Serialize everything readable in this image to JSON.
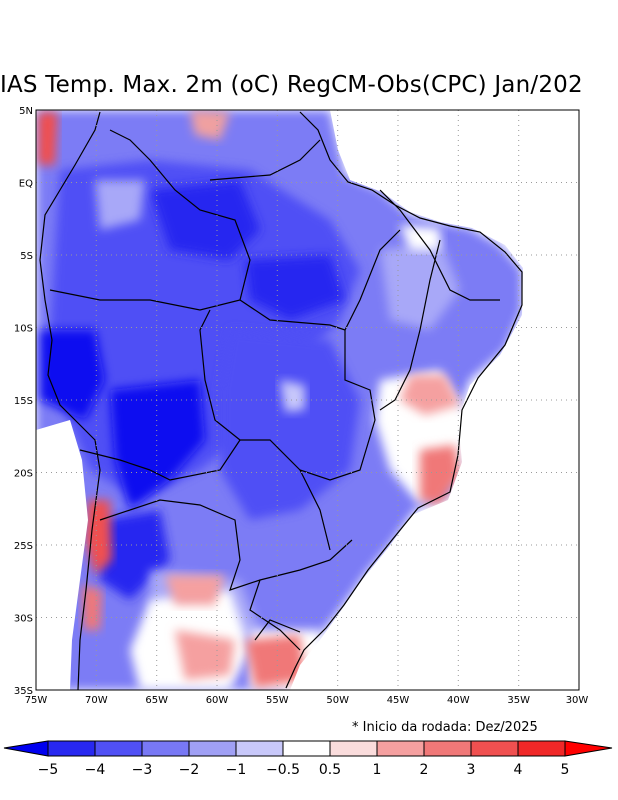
{
  "title": "IAS Temp. Max. 2m (oC) RegCM-Obs(CPC) Jan/202",
  "note": "* Inicio da rodada: Dez/2025",
  "map": {
    "lon_range": [
      -75,
      -30
    ],
    "lat_range": [
      -35,
      5
    ],
    "x_ticks": [
      "75W",
      "70W",
      "65W",
      "60W",
      "55W",
      "50W",
      "45W",
      "40W",
      "35W",
      "30W"
    ],
    "y_ticks": [
      "5N",
      "EQ",
      "5S",
      "10S",
      "15S",
      "20S",
      "25S",
      "30S",
      "35S"
    ],
    "grid": "dotted"
  },
  "colorbar": {
    "labels": [
      "−5",
      "−4",
      "−3",
      "−2",
      "−1",
      "−0.5",
      "0.5",
      "1",
      "2",
      "3",
      "4",
      "5"
    ],
    "colors": [
      "#0000f0",
      "#2828f0",
      "#5050f5",
      "#7878f5",
      "#a0a0f5",
      "#c8c8fa",
      "#ffffff",
      "#fadcdc",
      "#f5a0a0",
      "#f07878",
      "#f05050",
      "#f02828",
      "#ff0000"
    ]
  }
}
